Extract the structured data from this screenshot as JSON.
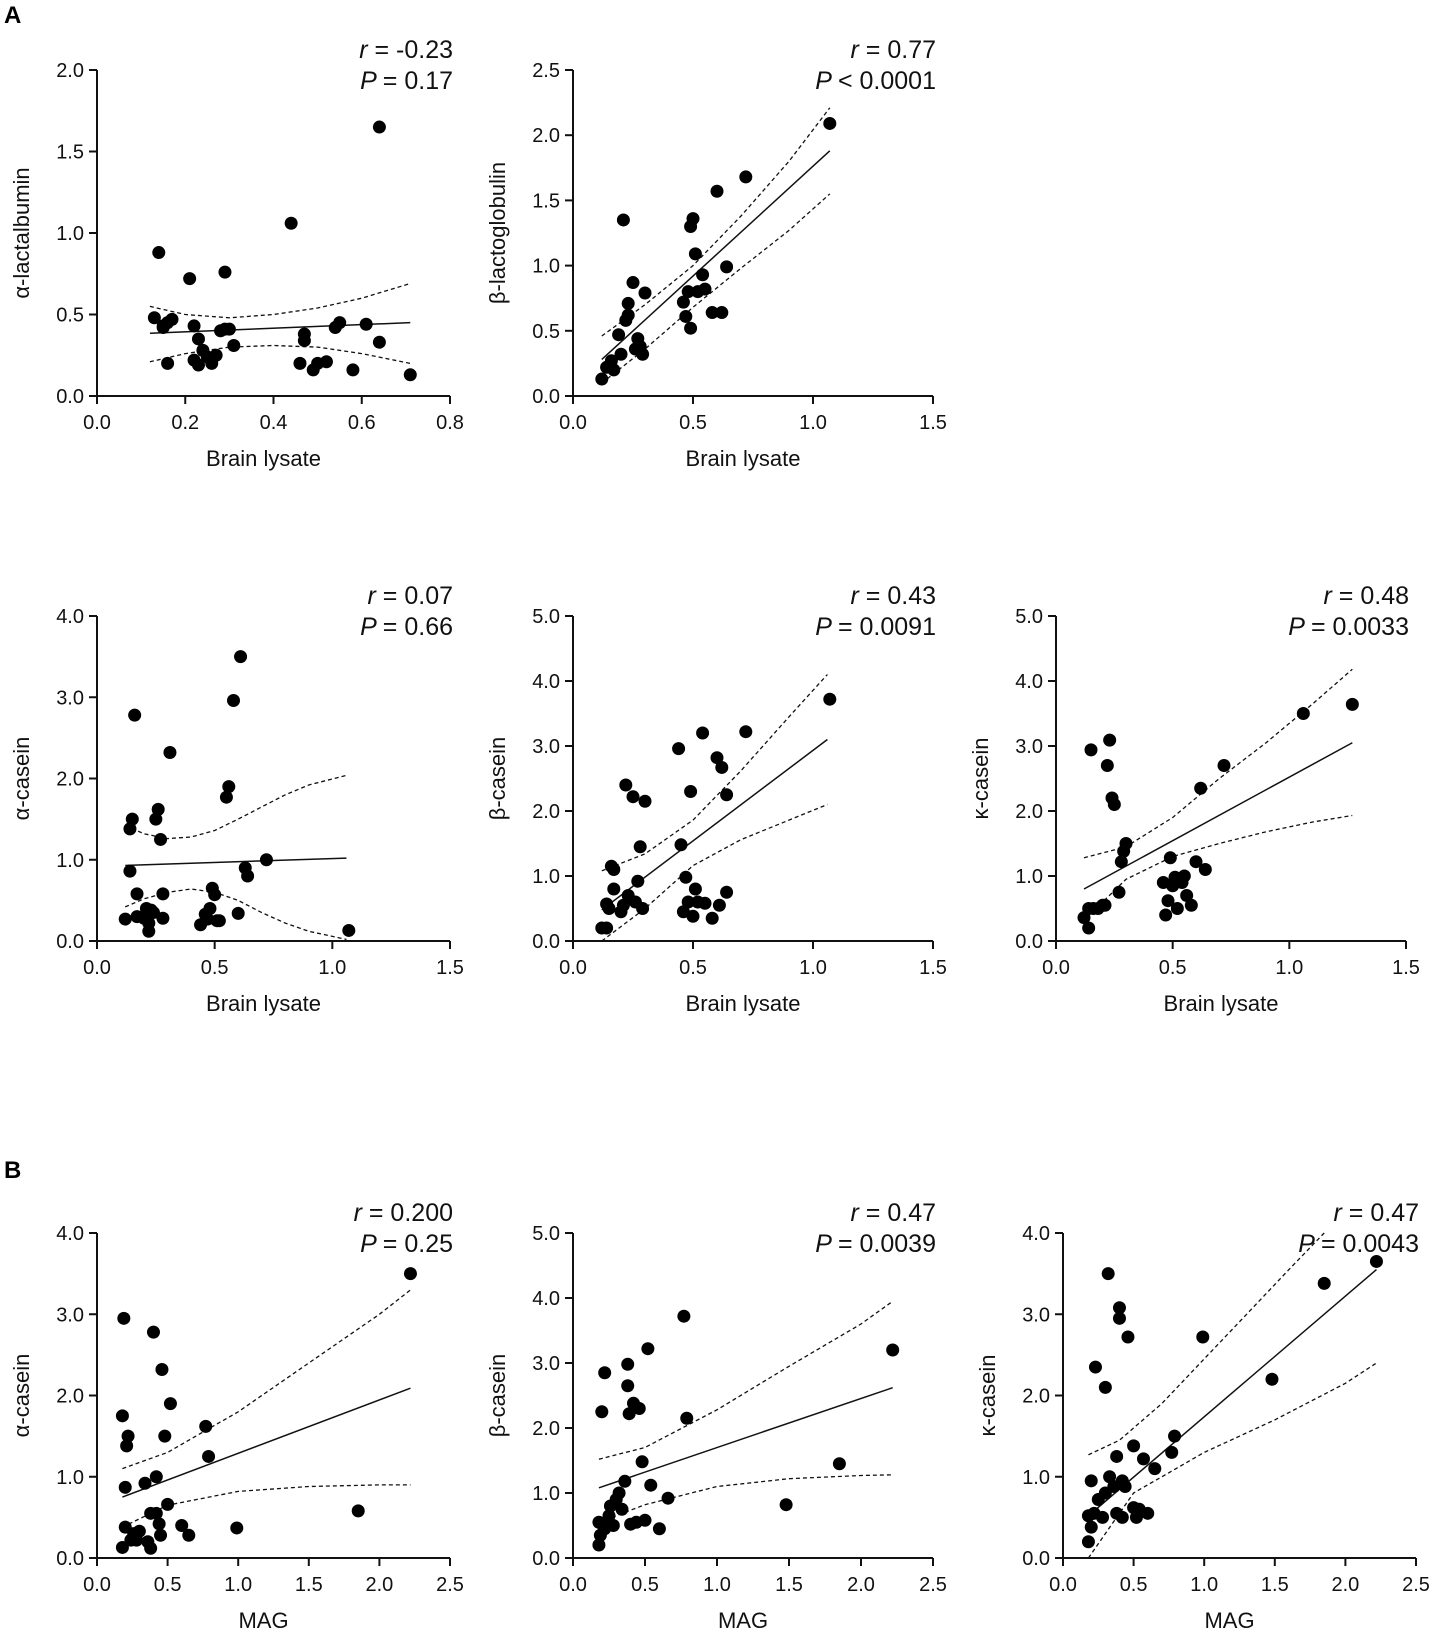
{
  "panels": {
    "a": "A",
    "b": "B"
  },
  "chart_data": [
    {
      "type": "scatter",
      "title": "",
      "xlabel": "Brain lysate",
      "ylabel": "α-lactalbumin",
      "xlim": [
        0,
        0.8
      ],
      "ylim": [
        0,
        2.0
      ],
      "xticks": [
        "0.0",
        "0.2",
        "0.4",
        "0.6",
        "0.8"
      ],
      "yticks": [
        "0.0",
        "0.5",
        "1.0",
        "1.5",
        "2.0"
      ],
      "r_label": "r",
      "r_value": "= -0.23",
      "p_label": "P",
      "p_value": "= 0.17",
      "regression": {
        "x": [
          0.12,
          0.71
        ],
        "y": [
          0.385,
          0.45
        ]
      },
      "ci_upper": {
        "x": [
          0.12,
          0.2,
          0.3,
          0.4,
          0.5,
          0.6,
          0.71
        ],
        "y": [
          0.55,
          0.5,
          0.48,
          0.5,
          0.54,
          0.6,
          0.69
        ]
      },
      "ci_lower": {
        "x": [
          0.12,
          0.2,
          0.3,
          0.4,
          0.5,
          0.6,
          0.71
        ],
        "y": [
          0.21,
          0.26,
          0.3,
          0.31,
          0.3,
          0.26,
          0.2
        ]
      },
      "points": {
        "x": [
          0.14,
          0.15,
          0.16,
          0.17,
          0.16,
          0.13,
          0.15,
          0.21,
          0.22,
          0.23,
          0.24,
          0.22,
          0.23,
          0.25,
          0.26,
          0.27,
          0.28,
          0.29,
          0.3,
          0.31,
          0.29,
          0.44,
          0.46,
          0.47,
          0.47,
          0.49,
          0.5,
          0.52,
          0.54,
          0.55,
          0.58,
          0.61,
          0.64,
          0.64,
          0.71
        ],
        "y": [
          0.88,
          0.42,
          0.45,
          0.47,
          0.2,
          0.48,
          0.43,
          0.72,
          0.43,
          0.35,
          0.28,
          0.22,
          0.19,
          0.24,
          0.2,
          0.25,
          0.4,
          0.76,
          0.41,
          0.31,
          0.41,
          1.06,
          0.2,
          0.38,
          0.34,
          0.16,
          0.2,
          0.21,
          0.42,
          0.45,
          0.16,
          0.44,
          1.65,
          0.33,
          0.13
        ]
      }
    },
    {
      "type": "scatter",
      "title": "",
      "xlabel": "Brain lysate",
      "ylabel": "β-lactoglobulin",
      "xlim": [
        0,
        1.5
      ],
      "ylim": [
        0,
        2.5
      ],
      "xticks": [
        "0.0",
        "0.5",
        "1.0",
        "1.5"
      ],
      "yticks": [
        "0.0",
        "0.5",
        "1.0",
        "1.5",
        "2.0",
        "2.5"
      ],
      "r_label": "r",
      "r_value": "= 0.77",
      "p_label": "P",
      "p_value": "< 0.0001",
      "regression": {
        "x": [
          0.12,
          1.07
        ],
        "y": [
          0.28,
          1.88
        ]
      },
      "ci_upper": {
        "x": [
          0.12,
          0.3,
          0.5,
          0.7,
          0.9,
          1.07
        ],
        "y": [
          0.46,
          0.7,
          1.0,
          1.38,
          1.8,
          2.21
        ]
      },
      "ci_lower": {
        "x": [
          0.12,
          0.3,
          0.5,
          0.7,
          0.9,
          1.07
        ],
        "y": [
          0.1,
          0.36,
          0.68,
          0.98,
          1.27,
          1.55
        ]
      },
      "points": {
        "x": [
          0.12,
          0.14,
          0.16,
          0.17,
          0.19,
          0.2,
          0.21,
          0.22,
          0.23,
          0.23,
          0.25,
          0.26,
          0.27,
          0.28,
          0.29,
          0.3,
          0.46,
          0.47,
          0.48,
          0.49,
          0.49,
          0.5,
          0.51,
          0.52,
          0.54,
          0.55,
          0.58,
          0.6,
          0.62,
          0.64,
          0.72,
          1.07
        ],
        "y": [
          0.13,
          0.22,
          0.27,
          0.2,
          0.47,
          0.32,
          1.35,
          0.58,
          0.62,
          0.71,
          0.87,
          0.36,
          0.44,
          0.38,
          0.32,
          0.79,
          0.72,
          0.61,
          0.8,
          1.3,
          0.52,
          1.36,
          1.09,
          0.8,
          0.93,
          0.82,
          0.64,
          1.57,
          0.64,
          0.99,
          1.68,
          2.09
        ]
      }
    },
    {
      "type": "scatter",
      "title": "",
      "xlabel": "Brain lysate",
      "ylabel": "α-casein",
      "xlim": [
        0,
        1.5
      ],
      "ylim": [
        0,
        4.0
      ],
      "xticks": [
        "0.0",
        "0.5",
        "1.0",
        "1.5"
      ],
      "yticks": [
        "0.0",
        "1.0",
        "2.0",
        "3.0",
        "4.0"
      ],
      "r_label": "r",
      "r_value": "= 0.07",
      "p_label": "P",
      "p_value": "= 0.66",
      "regression": {
        "x": [
          0.12,
          1.06
        ],
        "y": [
          0.93,
          1.02
        ]
      },
      "ci_upper": {
        "x": [
          0.12,
          0.2,
          0.3,
          0.4,
          0.5,
          0.6,
          0.7,
          0.8,
          0.9,
          1.06
        ],
        "y": [
          1.42,
          1.32,
          1.26,
          1.28,
          1.36,
          1.5,
          1.65,
          1.8,
          1.92,
          2.04
        ]
      },
      "ci_lower": {
        "x": [
          0.12,
          0.2,
          0.3,
          0.4,
          0.5,
          0.6,
          0.7,
          0.8,
          0.9,
          1.06
        ],
        "y": [
          0.42,
          0.52,
          0.6,
          0.64,
          0.6,
          0.5,
          0.35,
          0.22,
          0.12,
          0.02
        ]
      },
      "points": {
        "x": [
          0.12,
          0.14,
          0.14,
          0.15,
          0.16,
          0.17,
          0.17,
          0.2,
          0.21,
          0.22,
          0.22,
          0.23,
          0.24,
          0.25,
          0.26,
          0.27,
          0.28,
          0.28,
          0.31,
          0.44,
          0.46,
          0.47,
          0.48,
          0.49,
          0.5,
          0.51,
          0.52,
          0.55,
          0.56,
          0.58,
          0.6,
          0.61,
          0.63,
          0.64,
          0.72,
          1.07
        ],
        "y": [
          0.27,
          0.86,
          1.38,
          1.5,
          2.78,
          0.58,
          0.3,
          0.28,
          0.4,
          0.12,
          0.22,
          0.38,
          0.35,
          1.5,
          1.62,
          1.25,
          0.58,
          0.28,
          2.32,
          0.2,
          0.33,
          0.27,
          0.4,
          0.65,
          0.57,
          0.25,
          0.25,
          1.77,
          1.9,
          2.96,
          0.34,
          3.5,
          0.9,
          0.8,
          1.0,
          0.13
        ]
      }
    },
    {
      "type": "scatter",
      "title": "",
      "xlabel": "Brain lysate",
      "ylabel": "β-casein",
      "xlim": [
        0,
        1.5
      ],
      "ylim": [
        0,
        5.0
      ],
      "xticks": [
        "0.0",
        "0.5",
        "1.0",
        "1.5"
      ],
      "yticks": [
        "0.0",
        "1.0",
        "2.0",
        "3.0",
        "4.0",
        "5.0"
      ],
      "r_label": "r",
      "r_value": "= 0.43",
      "p_label": "P",
      "p_value": "= 0.0091",
      "regression": {
        "x": [
          0.12,
          1.06
        ],
        "y": [
          0.48,
          3.1
        ]
      },
      "ci_upper": {
        "x": [
          0.12,
          0.3,
          0.5,
          0.7,
          0.9,
          1.06
        ],
        "y": [
          1.08,
          1.34,
          1.86,
          2.62,
          3.45,
          4.1
        ]
      },
      "ci_lower": {
        "x": [
          0.12,
          0.3,
          0.5,
          0.7,
          0.9,
          1.06
        ],
        "y": [
          -0.1,
          0.5,
          1.16,
          1.56,
          1.86,
          2.1
        ]
      },
      "points": {
        "x": [
          0.12,
          0.14,
          0.14,
          0.15,
          0.16,
          0.17,
          0.17,
          0.2,
          0.21,
          0.22,
          0.23,
          0.25,
          0.26,
          0.27,
          0.28,
          0.29,
          0.3,
          0.44,
          0.45,
          0.46,
          0.47,
          0.48,
          0.49,
          0.5,
          0.51,
          0.52,
          0.54,
          0.55,
          0.58,
          0.6,
          0.61,
          0.62,
          0.64,
          0.64,
          0.72,
          1.07
        ],
        "y": [
          0.2,
          0.57,
          0.2,
          0.5,
          1.15,
          1.1,
          0.8,
          0.45,
          0.55,
          2.4,
          0.7,
          2.22,
          0.6,
          0.92,
          1.45,
          0.5,
          2.15,
          2.96,
          1.48,
          0.45,
          0.98,
          0.6,
          2.3,
          0.38,
          0.8,
          0.6,
          3.2,
          0.58,
          0.35,
          2.82,
          0.55,
          2.67,
          0.75,
          2.25,
          3.22,
          3.72
        ]
      }
    },
    {
      "type": "scatter",
      "title": "",
      "xlabel": "Brain lysate",
      "ylabel": "κ-casein",
      "xlim": [
        0,
        1.5
      ],
      "ylim": [
        0,
        5.0
      ],
      "xticks": [
        "0.0",
        "0.5",
        "1.0",
        "1.5"
      ],
      "yticks": [
        "0.0",
        "1.0",
        "2.0",
        "3.0",
        "4.0",
        "5.0"
      ],
      "r_label": "r",
      "r_value": "= 0.48",
      "p_label": "P",
      "p_value": "= 0.0033",
      "regression": {
        "x": [
          0.12,
          1.27
        ],
        "y": [
          0.8,
          3.05
        ]
      },
      "ci_upper": {
        "x": [
          0.12,
          0.3,
          0.5,
          0.7,
          0.9,
          1.1,
          1.27
        ],
        "y": [
          1.28,
          1.45,
          1.9,
          2.5,
          3.05,
          3.65,
          4.18
        ]
      },
      "ci_lower": {
        "x": [
          0.12,
          0.3,
          0.5,
          0.7,
          0.9,
          1.1,
          1.27
        ],
        "y": [
          0.32,
          0.95,
          1.3,
          1.5,
          1.68,
          1.83,
          1.93
        ]
      },
      "points": {
        "x": [
          0.12,
          0.14,
          0.14,
          0.15,
          0.16,
          0.18,
          0.2,
          0.21,
          0.22,
          0.23,
          0.24,
          0.25,
          0.27,
          0.28,
          0.29,
          0.3,
          0.46,
          0.47,
          0.48,
          0.49,
          0.5,
          0.51,
          0.52,
          0.54,
          0.55,
          0.56,
          0.58,
          0.6,
          0.62,
          0.64,
          0.72,
          1.06,
          1.27
        ],
        "y": [
          0.36,
          0.2,
          0.5,
          2.94,
          0.5,
          0.5,
          0.55,
          0.55,
          2.7,
          3.09,
          2.2,
          2.1,
          0.75,
          1.22,
          1.38,
          1.5,
          0.9,
          0.4,
          0.62,
          1.28,
          0.85,
          0.98,
          0.5,
          0.9,
          1.0,
          0.7,
          0.55,
          1.22,
          2.35,
          1.1,
          2.7,
          3.5,
          3.64
        ]
      }
    },
    {
      "type": "scatter",
      "title": "",
      "xlabel": "MAG",
      "ylabel": "α-casein",
      "xlim": [
        0,
        2.5
      ],
      "ylim": [
        0,
        4.0
      ],
      "xticks": [
        "0.0",
        "0.5",
        "1.0",
        "1.5",
        "2.0",
        "2.5"
      ],
      "yticks": [
        "0.0",
        "1.0",
        "2.0",
        "3.0",
        "4.0"
      ],
      "r_label": "r",
      "r_value": "= 0.200",
      "p_label": "P",
      "p_value": "= 0.25",
      "regression": {
        "x": [
          0.18,
          2.22
        ],
        "y": [
          0.75,
          2.09
        ]
      },
      "ci_upper": {
        "x": [
          0.18,
          0.5,
          1.0,
          1.5,
          2.0,
          2.22
        ],
        "y": [
          1.1,
          1.3,
          1.8,
          2.4,
          3.0,
          3.3
        ]
      },
      "ci_lower": {
        "x": [
          0.18,
          0.5,
          1.0,
          1.5,
          2.0,
          2.22
        ],
        "y": [
          0.38,
          0.65,
          0.82,
          0.88,
          0.9,
          0.9
        ]
      },
      "points": {
        "x": [
          0.18,
          0.18,
          0.19,
          0.2,
          0.2,
          0.21,
          0.22,
          0.24,
          0.26,
          0.28,
          0.3,
          0.34,
          0.36,
          0.38,
          0.38,
          0.4,
          0.42,
          0.42,
          0.44,
          0.45,
          0.46,
          0.48,
          0.5,
          0.52,
          0.6,
          0.65,
          0.77,
          0.79,
          0.99,
          1.85,
          2.22
        ],
        "y": [
          1.75,
          0.13,
          2.95,
          0.87,
          0.38,
          1.38,
          1.5,
          0.22,
          0.3,
          0.22,
          0.33,
          0.92,
          0.2,
          0.55,
          0.12,
          2.78,
          1.0,
          0.55,
          0.42,
          0.28,
          2.32,
          1.5,
          0.66,
          1.9,
          0.4,
          0.28,
          1.62,
          1.25,
          0.37,
          0.58,
          3.5
        ]
      }
    },
    {
      "type": "scatter",
      "title": "",
      "xlabel": "MAG",
      "ylabel": "β-casein",
      "xlim": [
        0,
        2.5
      ],
      "ylim": [
        0,
        5.0
      ],
      "xticks": [
        "0.0",
        "0.5",
        "1.0",
        "1.5",
        "2.0",
        "2.5"
      ],
      "yticks": [
        "0.0",
        "1.0",
        "2.0",
        "3.0",
        "4.0",
        "5.0"
      ],
      "r_label": "r",
      "r_value": "= 0.47",
      "p_label": "P",
      "p_value": "= 0.0039",
      "regression": {
        "x": [
          0.18,
          2.22
        ],
        "y": [
          1.08,
          2.62
        ]
      },
      "ci_upper": {
        "x": [
          0.18,
          0.5,
          1.0,
          1.5,
          2.0,
          2.22
        ],
        "y": [
          1.52,
          1.7,
          2.28,
          2.95,
          3.6,
          3.95
        ]
      },
      "ci_lower": {
        "x": [
          0.18,
          0.5,
          1.0,
          1.5,
          2.0,
          2.22
        ],
        "y": [
          0.55,
          0.82,
          1.1,
          1.22,
          1.27,
          1.28
        ]
      },
      "points": {
        "x": [
          0.18,
          0.18,
          0.19,
          0.2,
          0.21,
          0.22,
          0.22,
          0.24,
          0.25,
          0.26,
          0.28,
          0.3,
          0.32,
          0.34,
          0.36,
          0.38,
          0.38,
          0.39,
          0.4,
          0.42,
          0.44,
          0.46,
          0.48,
          0.5,
          0.52,
          0.54,
          0.6,
          0.66,
          0.77,
          0.79,
          1.48,
          1.85,
          2.22
        ],
        "y": [
          0.2,
          0.55,
          0.35,
          2.25,
          0.5,
          0.45,
          2.85,
          0.55,
          0.65,
          0.8,
          0.5,
          0.9,
          1.0,
          0.75,
          1.18,
          2.65,
          2.98,
          2.22,
          0.52,
          2.38,
          0.55,
          2.3,
          1.48,
          0.58,
          3.22,
          1.12,
          0.45,
          0.92,
          3.72,
          2.15,
          0.82,
          1.45,
          3.2
        ]
      }
    },
    {
      "type": "scatter",
      "title": "",
      "xlabel": "MAG",
      "ylabel": "κ-casein",
      "xlim": [
        0,
        2.5
      ],
      "ylim": [
        0,
        4.0
      ],
      "xticks": [
        "0.0",
        "0.5",
        "1.0",
        "1.5",
        "2.0",
        "2.5"
      ],
      "yticks": [
        "0.0",
        "1.0",
        "2.0",
        "3.0",
        "4.0"
      ],
      "r_label": "r",
      "r_value": "= 0.47",
      "p_label": "P",
      "p_value": "= 0.0043",
      "regression": {
        "x": [
          0.18,
          2.22
        ],
        "y": [
          0.52,
          3.55
        ]
      },
      "ci_upper": {
        "x": [
          0.18,
          0.4,
          0.7,
          1.0,
          1.3,
          1.6,
          1.85
        ],
        "y": [
          1.27,
          1.45,
          1.9,
          2.45,
          3.0,
          3.55,
          4.0
        ]
      },
      "ci_lower": {
        "x": [
          0.18,
          0.5,
          1.0,
          1.5,
          2.0,
          2.22
        ],
        "y": [
          -0.15,
          0.8,
          1.3,
          1.7,
          2.15,
          2.4
        ]
      },
      "points": {
        "x": [
          0.18,
          0.18,
          0.2,
          0.2,
          0.22,
          0.23,
          0.25,
          0.28,
          0.3,
          0.3,
          0.32,
          0.33,
          0.36,
          0.38,
          0.38,
          0.4,
          0.4,
          0.42,
          0.42,
          0.44,
          0.46,
          0.5,
          0.5,
          0.52,
          0.54,
          0.57,
          0.6,
          0.65,
          0.77,
          0.79,
          0.99,
          1.48,
          1.85,
          2.22
        ],
        "y": [
          0.52,
          0.2,
          0.95,
          0.38,
          0.55,
          2.35,
          0.72,
          0.5,
          2.1,
          0.8,
          3.5,
          1.0,
          0.88,
          1.25,
          0.55,
          3.08,
          2.95,
          0.95,
          0.5,
          0.88,
          2.72,
          0.62,
          1.38,
          0.5,
          0.6,
          1.22,
          0.55,
          1.1,
          1.3,
          1.5,
          2.72,
          2.2,
          3.38,
          3.65
        ]
      }
    }
  ]
}
